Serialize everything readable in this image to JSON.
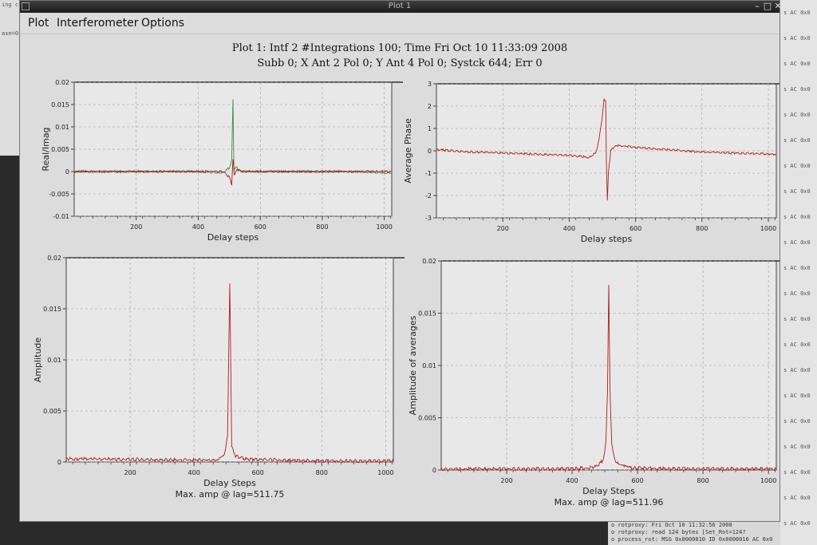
{
  "window": {
    "title": "Plot 1",
    "menu": [
      "Plot",
      "Interferometer",
      "Options"
    ],
    "controls": {
      "minimize": "–",
      "maximize": "□",
      "close": "✕"
    }
  },
  "header": {
    "line1": "Plot 1: Intf 2 #Integrations 100; Time Fri Oct 10 11:33:09 2008",
    "line2": "Subb 0; X Ant 2 Pol 0; Y Ant 4 Pol 0; Systck 644; Err 0"
  },
  "background": {
    "left_lines": [
      "ing cc",
      "ase=0x"
    ],
    "right_prefix": "s AC 0x0",
    "terminal_lines": [
      "o rotproxy: Fri Oct 10 11:32:56 2008",
      "o rotproxy: read 124 bytes [Set_Rot=124?",
      "o process_rot: MSG 0x0000010 ID 0x0000016 AC 0x0"
    ]
  },
  "chart_data": [
    {
      "type": "line",
      "panel": "top-left",
      "xlabel": "Delay steps",
      "ylabel": "Real/Imag",
      "xlim": [
        0,
        1024
      ],
      "ylim": [
        -0.01,
        0.02
      ],
      "xticks": [
        200,
        400,
        600,
        800,
        1000
      ],
      "yticks": [
        -0.01,
        -0.005,
        0,
        0.005,
        0.01,
        0.015,
        0.02
      ],
      "ytick_labels": [
        "-0.01",
        "-0.005",
        "0",
        "0.005",
        "0.01",
        "0.015",
        "0.02"
      ],
      "grid": true,
      "caption": "",
      "series": [
        {
          "color": "#3c8c3c",
          "points": [
            [
              0,
              0
            ],
            [
              100,
              0
            ],
            [
              200,
              0
            ],
            [
              300,
              0
            ],
            [
              400,
              0
            ],
            [
              480,
              -0.0003
            ],
            [
              500,
              0.0008
            ],
            [
              508,
              0.0025
            ],
            [
              512,
              0.0163
            ],
            [
              515,
              0.0004
            ],
            [
              522,
              0.001
            ],
            [
              540,
              0
            ],
            [
              600,
              0
            ],
            [
              700,
              0
            ],
            [
              800,
              0
            ],
            [
              900,
              0
            ],
            [
              1024,
              -0.0003
            ]
          ]
        },
        {
          "color": "#a31a1a",
          "points": [
            [
              0,
              0
            ],
            [
              300,
              0
            ],
            [
              480,
              0
            ],
            [
              500,
              -0.0012
            ],
            [
              508,
              -0.003
            ],
            [
              512,
              0.003
            ],
            [
              516,
              -0.0008
            ],
            [
              525,
              0.0005
            ],
            [
              540,
              0
            ],
            [
              1024,
              0
            ]
          ]
        }
      ]
    },
    {
      "type": "line",
      "panel": "top-right",
      "xlabel": "Delay steps",
      "ylabel": "Average Phase",
      "xlim": [
        0,
        1024
      ],
      "ylim": [
        -3,
        3
      ],
      "xticks": [
        200,
        400,
        600,
        800,
        1000
      ],
      "yticks": [
        -3,
        -2,
        -1,
        0,
        1,
        2,
        3
      ],
      "ytick_labels": [
        "-3",
        "-2",
        "-1",
        "0",
        "1",
        "2",
        "3"
      ],
      "grid": true,
      "caption": "",
      "series": [
        {
          "color": "#b01c1c",
          "points": [
            [
              0,
              0.05
            ],
            [
              100,
              -0.05
            ],
            [
              200,
              -0.1
            ],
            [
              300,
              -0.15
            ],
            [
              400,
              -0.2
            ],
            [
              460,
              -0.3
            ],
            [
              480,
              -0.1
            ],
            [
              490,
              0.5
            ],
            [
              500,
              1.6
            ],
            [
              505,
              2.3
            ],
            [
              510,
              2.2
            ],
            [
              512,
              -0.4
            ],
            [
              515,
              -2.2
            ],
            [
              518,
              -1.0
            ],
            [
              525,
              0.0
            ],
            [
              540,
              0.25
            ],
            [
              600,
              0.15
            ],
            [
              700,
              0.05
            ],
            [
              800,
              -0.05
            ],
            [
              900,
              -0.1
            ],
            [
              1024,
              -0.15
            ]
          ]
        }
      ]
    },
    {
      "type": "line",
      "panel": "bottom-left",
      "xlabel": "Delay Steps",
      "ylabel": "Amplitude",
      "xlim": [
        0,
        1024
      ],
      "ylim": [
        0,
        0.02
      ],
      "xticks": [
        200,
        400,
        600,
        800,
        1000
      ],
      "yticks": [
        0,
        0.005,
        0.01,
        0.015,
        0.02
      ],
      "ytick_labels": [
        "0",
        "0.005",
        "0.01",
        "0.015",
        "0.02"
      ],
      "grid": true,
      "caption": "Max. amp @ lag=511.75",
      "series": [
        {
          "color": "#b01c1c",
          "points": [
            [
              0,
              0.0003
            ],
            [
              100,
              0.0003
            ],
            [
              200,
              0.00025
            ],
            [
              300,
              0.0002
            ],
            [
              400,
              0.0002
            ],
            [
              470,
              0.0002
            ],
            [
              495,
              0.0008
            ],
            [
              505,
              0.0025
            ],
            [
              510,
              0.0135
            ],
            [
              512,
              0.0175
            ],
            [
              514,
              0.0125
            ],
            [
              518,
              0.0015
            ],
            [
              530,
              0.0006
            ],
            [
              560,
              0.0003
            ],
            [
              700,
              0.00015
            ],
            [
              850,
              0.0001
            ],
            [
              1024,
              0.0001
            ]
          ]
        }
      ]
    },
    {
      "type": "line",
      "panel": "bottom-right",
      "xlabel": "Delay Steps",
      "ylabel": "Amplitude of averages",
      "xlim": [
        0,
        1024
      ],
      "ylim": [
        0,
        0.02
      ],
      "xticks": [
        200,
        400,
        600,
        800,
        1000
      ],
      "yticks": [
        0,
        0.005,
        0.01,
        0.015,
        0.02
      ],
      "ytick_labels": [
        "0",
        "0.005",
        "0.01",
        "0.015",
        "0.02"
      ],
      "grid": true,
      "caption": "Max. amp @ lag=511.96",
      "series": [
        {
          "color": "#b01c1c",
          "points": [
            [
              0,
              0.0001
            ],
            [
              200,
              0.0001
            ],
            [
              400,
              0.00012
            ],
            [
              450,
              0.0002
            ],
            [
              480,
              0.0004
            ],
            [
              495,
              0.001
            ],
            [
              503,
              0.0025
            ],
            [
              508,
              0.0075
            ],
            [
              512,
              0.0178
            ],
            [
              516,
              0.0075
            ],
            [
              521,
              0.0025
            ],
            [
              530,
              0.001
            ],
            [
              545,
              0.0004
            ],
            [
              580,
              0.0002
            ],
            [
              700,
              0.00012
            ],
            [
              1024,
              0.0001
            ]
          ]
        }
      ]
    }
  ]
}
